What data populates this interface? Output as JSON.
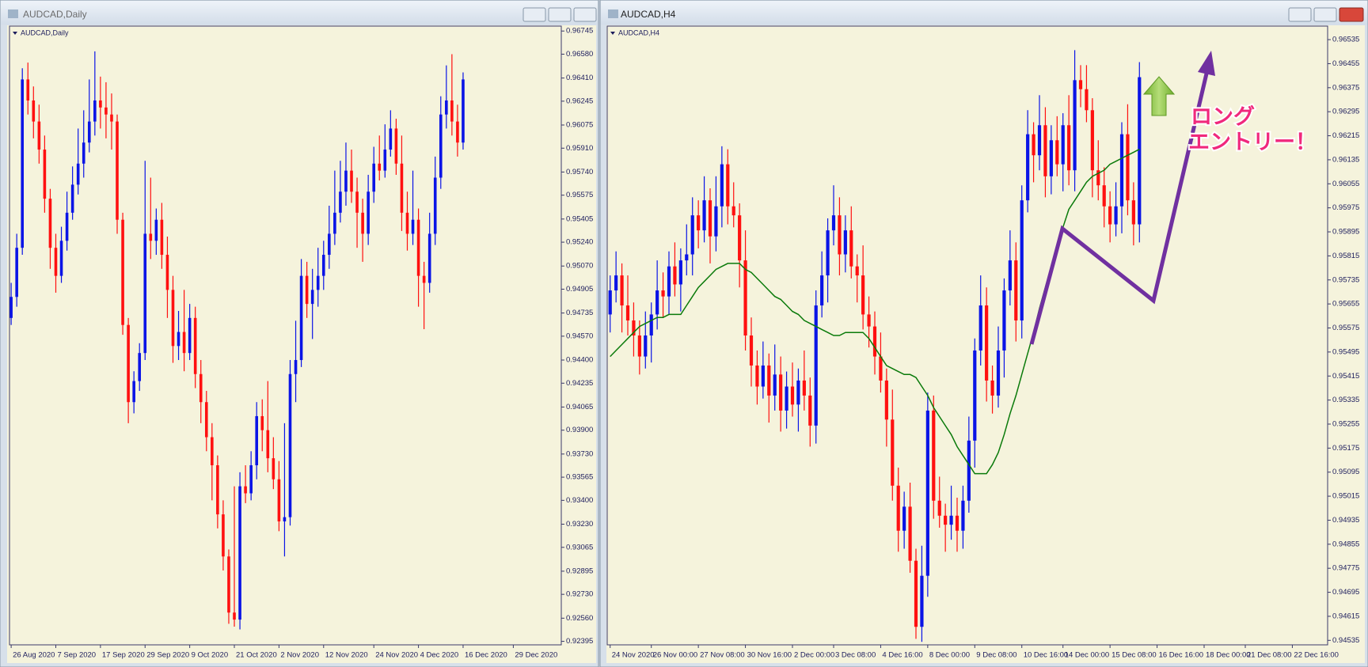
{
  "chart_data": [
    {
      "type": "candlestick",
      "title": "AUDCAD,Daily",
      "up_color": "#0a14e6",
      "down_color": "#ff1010",
      "open": [
        0.947,
        0.9485,
        0.952,
        0.964,
        0.9625,
        0.961,
        0.959,
        0.9555,
        0.952,
        0.95,
        0.9525,
        0.9545,
        0.9565,
        0.958,
        0.9595,
        0.961,
        0.9625,
        0.962,
        0.9615,
        0.961,
        0.954,
        0.9465,
        0.941,
        0.9425,
        0.9445,
        0.953,
        0.9525,
        0.954,
        0.9515,
        0.949,
        0.945,
        0.946,
        0.9445,
        0.947,
        0.943,
        0.941,
        0.9385,
        0.9365,
        0.933,
        0.93,
        0.926,
        0.9255,
        0.935,
        0.9345,
        0.9365,
        0.94,
        0.939,
        0.937,
        0.9355,
        0.9325,
        0.9328,
        0.943,
        0.944,
        0.95,
        0.948,
        0.949,
        0.95,
        0.9515,
        0.953,
        0.9545,
        0.956,
        0.9575,
        0.956,
        0.9545,
        0.953,
        0.956,
        0.958,
        0.9575,
        0.959,
        0.9605,
        0.958,
        0.9545,
        0.953,
        0.954,
        0.95,
        0.9495,
        0.953,
        0.957,
        0.9615,
        0.9625,
        0.961,
        0.9595
      ],
      "high": [
        0.9495,
        0.953,
        0.9648,
        0.9652,
        0.9635,
        0.9622,
        0.96,
        0.9562,
        0.953,
        0.9535,
        0.956,
        0.9578,
        0.9605,
        0.9618,
        0.964,
        0.966,
        0.9642,
        0.9638,
        0.963,
        0.9615,
        0.9545,
        0.947,
        0.9432,
        0.9452,
        0.9582,
        0.957,
        0.9548,
        0.9552,
        0.9528,
        0.95,
        0.9475,
        0.949,
        0.948,
        0.9478,
        0.944,
        0.9418,
        0.9395,
        0.9372,
        0.934,
        0.9305,
        0.935,
        0.936,
        0.9365,
        0.9375,
        0.941,
        0.9412,
        0.9425,
        0.9385,
        0.9368,
        0.9395,
        0.944,
        0.9468,
        0.9512,
        0.951,
        0.9505,
        0.952,
        0.9525,
        0.955,
        0.9575,
        0.9582,
        0.9595,
        0.959,
        0.957,
        0.9555,
        0.9572,
        0.9592,
        0.96,
        0.9608,
        0.9618,
        0.9612,
        0.96,
        0.956,
        0.9575,
        0.9548,
        0.951,
        0.9545,
        0.9585,
        0.9628,
        0.965,
        0.9658,
        0.9622,
        0.9645
      ],
      "low": [
        0.9465,
        0.9478,
        0.9515,
        0.9615,
        0.9598,
        0.958,
        0.9545,
        0.9505,
        0.9488,
        0.9495,
        0.9518,
        0.954,
        0.9558,
        0.957,
        0.9588,
        0.96,
        0.9605,
        0.9598,
        0.959,
        0.953,
        0.9458,
        0.9395,
        0.9402,
        0.9418,
        0.944,
        0.9512,
        0.9515,
        0.9505,
        0.947,
        0.9438,
        0.944,
        0.9432,
        0.944,
        0.942,
        0.9395,
        0.9375,
        0.934,
        0.932,
        0.929,
        0.9252,
        0.925,
        0.9248,
        0.9338,
        0.934,
        0.9355,
        0.9375,
        0.936,
        0.9348,
        0.9318,
        0.93,
        0.9322,
        0.941,
        0.9435,
        0.947,
        0.9455,
        0.9478,
        0.949,
        0.9505,
        0.9522,
        0.9538,
        0.955,
        0.9552,
        0.952,
        0.951,
        0.9522,
        0.9552,
        0.9568,
        0.957,
        0.9585,
        0.9572,
        0.9532,
        0.9518,
        0.9522,
        0.9478,
        0.9462,
        0.9488,
        0.9522,
        0.9562,
        0.9605,
        0.96,
        0.9585,
        0.959
      ],
      "close": [
        0.9485,
        0.952,
        0.964,
        0.9625,
        0.961,
        0.959,
        0.9555,
        0.952,
        0.95,
        0.9525,
        0.9545,
        0.9565,
        0.958,
        0.9595,
        0.961,
        0.9625,
        0.962,
        0.9615,
        0.961,
        0.954,
        0.9465,
        0.941,
        0.9425,
        0.9445,
        0.953,
        0.9525,
        0.954,
        0.9515,
        0.949,
        0.945,
        0.946,
        0.9445,
        0.947,
        0.943,
        0.941,
        0.9385,
        0.9365,
        0.933,
        0.93,
        0.926,
        0.9255,
        0.935,
        0.9345,
        0.9365,
        0.94,
        0.939,
        0.937,
        0.9355,
        0.9325,
        0.9328,
        0.943,
        0.944,
        0.95,
        0.948,
        0.949,
        0.95,
        0.9515,
        0.953,
        0.9545,
        0.956,
        0.9575,
        0.956,
        0.9545,
        0.953,
        0.956,
        0.958,
        0.9575,
        0.959,
        0.9605,
        0.958,
        0.9545,
        0.953,
        0.954,
        0.95,
        0.9495,
        0.953,
        0.957,
        0.9615,
        0.9625,
        0.961,
        0.9595,
        0.964
      ],
      "xlim": [
        -0.3,
        98.6
      ],
      "xticks": [
        {
          "value": 0,
          "label": "26 Aug 2020"
        },
        {
          "value": 8,
          "label": "7 Sep 2020"
        },
        {
          "value": 16,
          "label": "17 Sep 2020"
        },
        {
          "value": 24,
          "label": "29 Sep 2020"
        },
        {
          "value": 32,
          "label": "9 Oct 2020"
        },
        {
          "value": 40,
          "label": "21 Oct 2020"
        },
        {
          "value": 48,
          "label": "2 Nov 2020"
        },
        {
          "value": 56,
          "label": "12 Nov 2020"
        },
        {
          "value": 65,
          "label": "24 Nov 2020"
        },
        {
          "value": 73,
          "label": "4 Dec 2020"
        },
        {
          "value": 81,
          "label": "16 Dec 2020"
        },
        {
          "value": 90,
          "label": "29 Dec 2020"
        }
      ],
      "ylim": [
        0.9237,
        0.9678
      ],
      "yticks": [
        0.96745,
        {
          "value": 0.9658,
          "label": "0.96580"
        },
        {
          "value": 0.9641,
          "label": "0.96410"
        },
        0.96245,
        0.96075,
        {
          "value": 0.9591,
          "label": "0.95910"
        },
        {
          "value": 0.9574,
          "label": "0.95740"
        },
        0.95575,
        0.95405,
        {
          "value": 0.9524,
          "label": "0.95240"
        },
        {
          "value": 0.9507,
          "label": "0.95070"
        },
        0.94905,
        0.94735,
        {
          "value": 0.9457,
          "label": "0.94570"
        },
        {
          "value": 0.944,
          "label": "0.94400"
        },
        0.94235,
        0.94065,
        {
          "value": 0.939,
          "label": "0.93900"
        },
        {
          "value": 0.9373,
          "label": "0.93730"
        },
        0.93565,
        {
          "value": 0.934,
          "label": "0.93400"
        },
        {
          "value": 0.9323,
          "label": "0.93230"
        },
        0.93065,
        0.92895,
        {
          "value": 0.9273,
          "label": "0.92730"
        },
        {
          "value": 0.9256,
          "label": "0.92560"
        },
        0.92395
      ]
    },
    {
      "type": "candlestick",
      "title": "AUDCAD,H4",
      "up_color": "#0a14e6",
      "down_color": "#ff1010",
      "open": [
        0.9562,
        0.957,
        0.9575,
        0.9565,
        0.956,
        0.9555,
        0.9548,
        0.9555,
        0.9562,
        0.957,
        0.9568,
        0.9578,
        0.9572,
        0.958,
        0.9582,
        0.9595,
        0.959,
        0.96,
        0.9588,
        0.9598,
        0.9612,
        0.9598,
        0.9595,
        0.958,
        0.9555,
        0.9545,
        0.9538,
        0.9545,
        0.9535,
        0.9542,
        0.953,
        0.9538,
        0.9532,
        0.954,
        0.9535,
        0.9525,
        0.9565,
        0.9575,
        0.959,
        0.9595,
        0.9582,
        0.959,
        0.9578,
        0.9575,
        0.9562,
        0.9558,
        0.9548,
        0.954,
        0.9527,
        0.9505,
        0.949,
        0.9498,
        0.948,
        0.9458,
        0.9475,
        0.953,
        0.95,
        0.9495,
        0.9492,
        0.9495,
        0.949,
        0.95,
        0.952,
        0.955,
        0.9565,
        0.954,
        0.9535,
        0.955,
        0.957,
        0.958,
        0.956,
        0.96,
        0.9622,
        0.9615,
        0.9625,
        0.9608,
        0.962,
        0.9612,
        0.9625,
        0.961,
        0.964,
        0.9637,
        0.963,
        0.961,
        0.9605,
        0.9598,
        0.9592,
        0.9598,
        0.9622,
        0.96,
        0.9592
      ],
      "high": [
        0.9575,
        0.9583,
        0.9579,
        0.9575,
        0.9566,
        0.956,
        0.9563,
        0.9566,
        0.958,
        0.9576,
        0.9583,
        0.9586,
        0.9584,
        0.9592,
        0.9601,
        0.96,
        0.9608,
        0.9604,
        0.9608,
        0.9618,
        0.9617,
        0.9606,
        0.9599,
        0.959,
        0.9561,
        0.955,
        0.9553,
        0.9549,
        0.9552,
        0.9548,
        0.9543,
        0.9546,
        0.9544,
        0.955,
        0.9541,
        0.957,
        0.9583,
        0.9594,
        0.9605,
        0.9601,
        0.9595,
        0.9598,
        0.9582,
        0.9585,
        0.9568,
        0.9563,
        0.9556,
        0.9544,
        0.9537,
        0.9511,
        0.9503,
        0.9506,
        0.9484,
        0.9485,
        0.9536,
        0.9535,
        0.9508,
        0.9499,
        0.9505,
        0.9501,
        0.9505,
        0.9528,
        0.9554,
        0.9575,
        0.9571,
        0.9545,
        0.9558,
        0.9574,
        0.959,
        0.9586,
        0.9605,
        0.963,
        0.9626,
        0.9635,
        0.9631,
        0.9625,
        0.9628,
        0.9629,
        0.9635,
        0.965,
        0.9645,
        0.9645,
        0.9634,
        0.962,
        0.9611,
        0.9603,
        0.9606,
        0.9626,
        0.9632,
        0.9606,
        0.9646
      ],
      "low": [
        0.9556,
        0.9566,
        0.9556,
        0.9555,
        0.9548,
        0.9542,
        0.9544,
        0.9546,
        0.9557,
        0.9561,
        0.9562,
        0.9568,
        0.9563,
        0.9575,
        0.9575,
        0.9584,
        0.9586,
        0.9579,
        0.9583,
        0.9591,
        0.9592,
        0.9591,
        0.9571,
        0.955,
        0.9538,
        0.9532,
        0.9534,
        0.9526,
        0.953,
        0.9523,
        0.9524,
        0.9528,
        0.9523,
        0.953,
        0.9518,
        0.9519,
        0.9561,
        0.9566,
        0.9585,
        0.9575,
        0.9576,
        0.9574,
        0.9566,
        0.9557,
        0.9551,
        0.9542,
        0.9536,
        0.9518,
        0.95,
        0.9483,
        0.9484,
        0.9476,
        0.9454,
        0.9453,
        0.9468,
        0.9494,
        0.9491,
        0.9483,
        0.9487,
        0.9483,
        0.9484,
        0.9496,
        0.9511,
        0.9545,
        0.9533,
        0.9529,
        0.9531,
        0.9541,
        0.9565,
        0.9553,
        0.9554,
        0.9596,
        0.9606,
        0.961,
        0.9601,
        0.9602,
        0.9608,
        0.9603,
        0.9605,
        0.9603,
        0.9631,
        0.9626,
        0.9601,
        0.96,
        0.9591,
        0.9586,
        0.9588,
        0.9589,
        0.9595,
        0.9585,
        0.9586
      ],
      "close": [
        0.957,
        0.9575,
        0.9565,
        0.956,
        0.9555,
        0.9548,
        0.9555,
        0.9562,
        0.957,
        0.9568,
        0.9578,
        0.9572,
        0.958,
        0.9582,
        0.9595,
        0.959,
        0.96,
        0.9588,
        0.9598,
        0.9612,
        0.9598,
        0.9595,
        0.958,
        0.9555,
        0.9545,
        0.9538,
        0.9545,
        0.9535,
        0.9542,
        0.953,
        0.9538,
        0.9532,
        0.954,
        0.9535,
        0.9525,
        0.9565,
        0.9575,
        0.959,
        0.9595,
        0.9582,
        0.959,
        0.9578,
        0.9575,
        0.9562,
        0.9558,
        0.9548,
        0.954,
        0.9527,
        0.9505,
        0.949,
        0.9498,
        0.948,
        0.9458,
        0.9475,
        0.953,
        0.95,
        0.9495,
        0.9492,
        0.9495,
        0.949,
        0.95,
        0.952,
        0.955,
        0.9565,
        0.954,
        0.9535,
        0.955,
        0.957,
        0.958,
        0.956,
        0.96,
        0.9622,
        0.9615,
        0.9625,
        0.9608,
        0.962,
        0.9612,
        0.9625,
        0.961,
        0.964,
        0.9637,
        0.963,
        0.961,
        0.9605,
        0.9598,
        0.9592,
        0.9598,
        0.9622,
        0.96,
        0.9592,
        0.9641
      ],
      "line": {
        "color": "#0a7a0a",
        "values": [
          0.9548,
          0.955,
          0.9552,
          0.9554,
          0.9556,
          0.9558,
          0.9559,
          0.956,
          0.9561,
          0.9561,
          0.9562,
          0.9562,
          0.9562,
          0.9565,
          0.9568,
          0.9571,
          0.9573,
          0.9575,
          0.9577,
          0.9578,
          0.9579,
          0.9579,
          0.9579,
          0.9577,
          0.9576,
          0.9574,
          0.9572,
          0.957,
          0.9568,
          0.9567,
          0.9565,
          0.9563,
          0.9562,
          0.956,
          0.9559,
          0.9558,
          0.9557,
          0.9556,
          0.9555,
          0.9555,
          0.9556,
          0.9556,
          0.9556,
          0.9556,
          0.9554,
          0.9551,
          0.9548,
          0.9545,
          0.9544,
          0.9543,
          0.9542,
          0.9542,
          0.9541,
          0.9538,
          0.9535,
          0.9531,
          0.9528,
          0.9525,
          0.9522,
          0.9518,
          0.9515,
          0.9512,
          0.9509,
          0.9509,
          0.9509,
          0.9512,
          0.9516,
          0.9522,
          0.9529,
          0.9535,
          0.9542,
          0.9549,
          0.9556,
          0.9564,
          0.9571,
          0.9578,
          0.9585,
          0.9591,
          0.9597,
          0.96,
          0.9603,
          0.9606,
          0.9608,
          0.9609,
          0.961,
          0.9612,
          0.9613,
          0.9614,
          0.9615,
          0.9616,
          0.9617
        ]
      },
      "annotations": [
        "ロング",
        "エントリー！"
      ],
      "xlim": [
        -0.5,
        122
      ],
      "xticks": [
        {
          "value": 0,
          "label": "24 Nov 2020"
        },
        {
          "value": 7,
          "label": "26 Nov 00:00"
        },
        {
          "value": 15,
          "label": "27 Nov 08:00"
        },
        {
          "value": 23,
          "label": "30 Nov 16:00"
        },
        {
          "value": 31,
          "label": "2 Dec 00:00"
        },
        {
          "value": 38,
          "label": "3 Dec 08:00"
        },
        {
          "value": 46,
          "label": "4 Dec 16:00"
        },
        {
          "value": 54,
          "label": "8 Dec 00:00"
        },
        {
          "value": 62,
          "label": "9 Dec 08:00"
        },
        {
          "value": 70,
          "label": "10 Dec 16:00"
        },
        {
          "value": 77,
          "label": "14 Dec 00:00"
        },
        {
          "value": 85,
          "label": "15 Dec 08:00"
        },
        {
          "value": 93,
          "label": "16 Dec 16:00"
        },
        {
          "value": 101,
          "label": "18 Dec 00:00"
        },
        {
          "value": 108,
          "label": "21 Dec 08:00"
        },
        {
          "value": 116,
          "label": "22 Dec 16:00"
        }
      ],
      "ylim": [
        0.9452,
        0.9658
      ],
      "yticks": [
        0.96535,
        0.96455,
        0.96375,
        0.96295,
        0.96215,
        0.96135,
        0.96055,
        0.95975,
        0.95895,
        0.95815,
        0.95735,
        0.95655,
        0.95575,
        0.95495,
        0.95415,
        0.95335,
        0.95255,
        0.95175,
        0.95095,
        0.95015,
        0.94935,
        0.94855,
        0.94775,
        0.94695,
        0.94615,
        0.94535
      ]
    }
  ]
}
